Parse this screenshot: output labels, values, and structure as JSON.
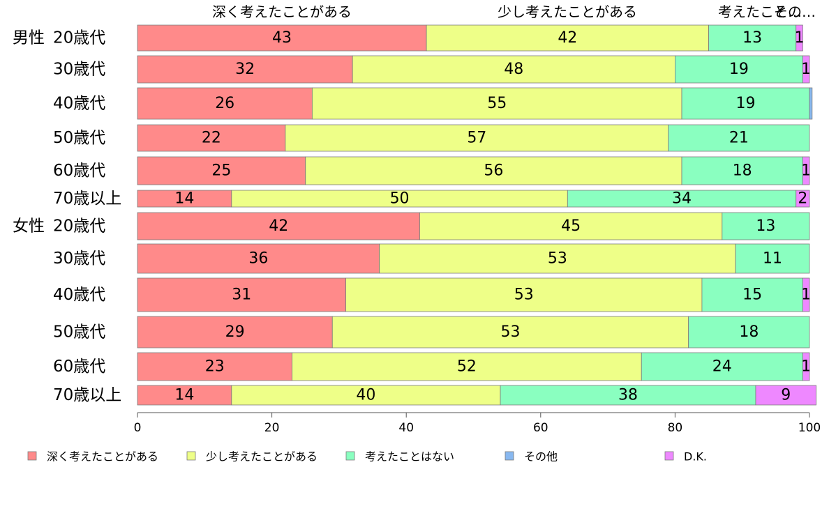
{
  "chart_data": {
    "type": "bar",
    "orientation": "horizontal",
    "stacked": true,
    "title": "",
    "xlabel": "",
    "ylabel": "",
    "xlim": [
      0,
      100
    ],
    "xticks": [
      0,
      20,
      40,
      60,
      80,
      100
    ],
    "grid": false,
    "legend_position": "bottom",
    "top_labels": [
      "深く考えたことがある",
      "少し考えたことがある",
      "考えたこと…",
      "その…"
    ],
    "groups": [
      {
        "name": "男性",
        "rows": [
          {
            "label": "20歳代",
            "values": [
              43,
              42,
              13,
              0,
              1
            ]
          },
          {
            "label": "30歳代",
            "values": [
              32,
              48,
              19,
              0,
              1
            ]
          },
          {
            "label": "40歳代",
            "values": [
              26,
              55,
              19,
              0.4,
              0
            ]
          },
          {
            "label": "50歳代",
            "values": [
              22,
              57,
              21,
              0,
              0
            ]
          },
          {
            "label": "60歳代",
            "values": [
              25,
              56,
              18,
              0,
              1
            ]
          },
          {
            "label": "70歳以上",
            "values": [
              14,
              50,
              34,
              0,
              2
            ]
          }
        ]
      },
      {
        "name": "女性",
        "rows": [
          {
            "label": "20歳代",
            "values": [
              42,
              45,
              13,
              0,
              0
            ]
          },
          {
            "label": "30歳代",
            "values": [
              36,
              53,
              11,
              0,
              0
            ]
          },
          {
            "label": "40歳代",
            "values": [
              31,
              53,
              15,
              0,
              1
            ]
          },
          {
            "label": "50歳代",
            "values": [
              29,
              53,
              18,
              0,
              0
            ]
          },
          {
            "label": "60歳代",
            "values": [
              23,
              52,
              24,
              0,
              1
            ]
          },
          {
            "label": "70歳以上",
            "values": [
              14,
              40,
              38,
              0,
              9
            ]
          }
        ]
      }
    ],
    "series": [
      {
        "name": "深く考えたことがある",
        "color": "#FF8A8A"
      },
      {
        "name": "少し考えたことがある",
        "color": "#EEFF88"
      },
      {
        "name": "考えたことはない",
        "color": "#8AFFC0"
      },
      {
        "name": "その他",
        "color": "#88B8F0"
      },
      {
        "name": "D.K.",
        "color": "#EE88FF"
      }
    ]
  }
}
